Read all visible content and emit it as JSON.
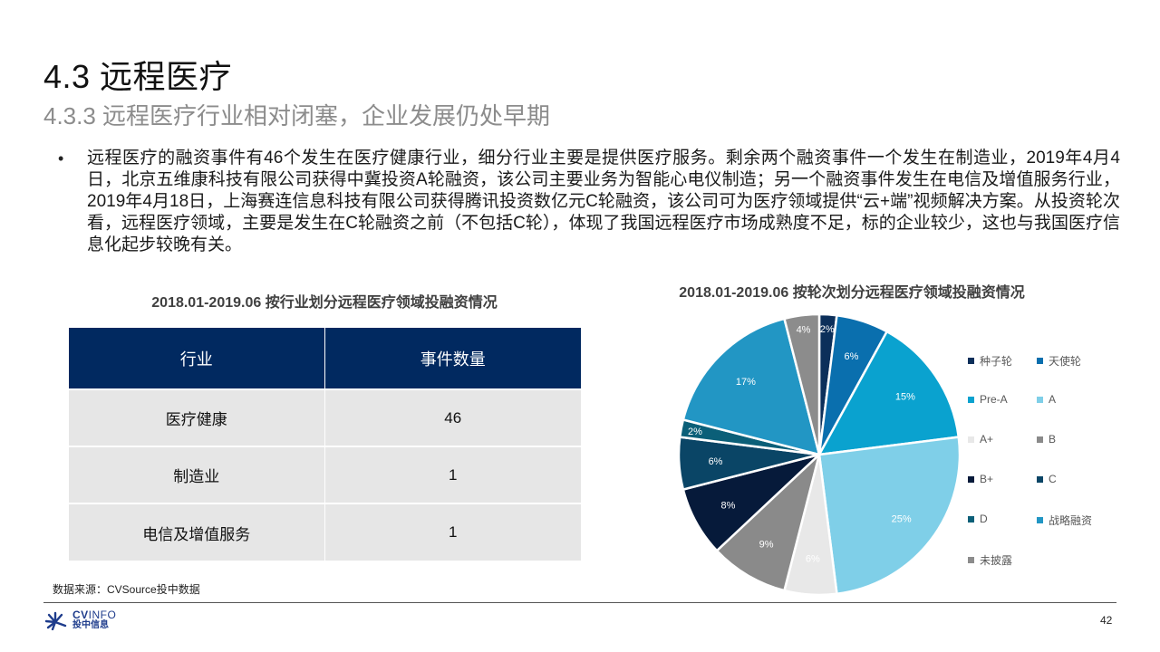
{
  "header": {
    "title": "4.3 远程医疗",
    "subtitle": "4.3.3 远程医疗行业相对闭塞，企业发展仍处早期"
  },
  "bullet": {
    "marker": "•",
    "text": "远程医疗的融资事件有46个发生在医疗健康行业，细分行业主要是提供医疗服务。剩余两个融资事件一个发生在制造业，2019年4月4日，北京五维康科技有限公司获得中冀投资A轮融资，该公司主要业务为智能心电仪制造；另一个融资事件发生在电信及增值服务行业，2019年4月18日，上海赛连信息科技有限公司获得腾讯投资数亿元C轮融资，该公司可为医疗领域提供“云+端”视频解决方案。从投资轮次看，远程医疗领域，主要是发生在C轮融资之前（不包括C轮），体现了我国远程医疗市场成熟度不足，标的企业较少，这也与我国医疗信息化起步较晚有关。"
  },
  "table": {
    "title": "2018.01-2019.06 按行业划分远程医疗领域投融资情况",
    "headers": [
      "行业",
      "事件数量"
    ],
    "rows": [
      [
        "医疗健康",
        "46"
      ],
      [
        "制造业",
        "1"
      ],
      [
        "电信及增值服务",
        "1"
      ]
    ],
    "header_color": "#012960",
    "row_color": "#e6e6e6"
  },
  "chart_data": {
    "type": "pie",
    "title": "2018.01-2019.06 按轮次划分远程医疗领域投融资情况",
    "categories": [
      "种子轮",
      "天使轮",
      "Pre-A",
      "A",
      "A+",
      "B",
      "B+",
      "C",
      "D",
      "战略融资",
      "未披露"
    ],
    "values": [
      2,
      6,
      15,
      25,
      6,
      9,
      8,
      6,
      2,
      17,
      4
    ],
    "labels": [
      "2%",
      "6%",
      "15%",
      "25%",
      "6%",
      "9%",
      "8%",
      "6%",
      "2%",
      "17%",
      "4%"
    ],
    "colors": [
      "#0c2f5a",
      "#0a6fae",
      "#0aa2cf",
      "#7fcfe8",
      "#e8e8e8",
      "#8a8a8a",
      "#061a3a",
      "#0a4566",
      "#0b5f78",
      "#2296c4",
      "#8c8c8c"
    ],
    "label_colors": [
      "#ffffff",
      "#ffffff",
      "#ffffff",
      "#ffffff",
      "#ffffff",
      "#ffffff",
      "#ffffff",
      "#ffffff",
      "#ffffff",
      "#ffffff",
      "#ffffff"
    ],
    "start_angle": "top, clockwise",
    "legend_position": "right, two columns",
    "unit": "%"
  },
  "footer": {
    "source": "数据来源：CVSource投中数据",
    "logo_en_bold": "CV",
    "logo_en_light": "INFO",
    "logo_cn": "投中信息",
    "page_number": "42"
  }
}
